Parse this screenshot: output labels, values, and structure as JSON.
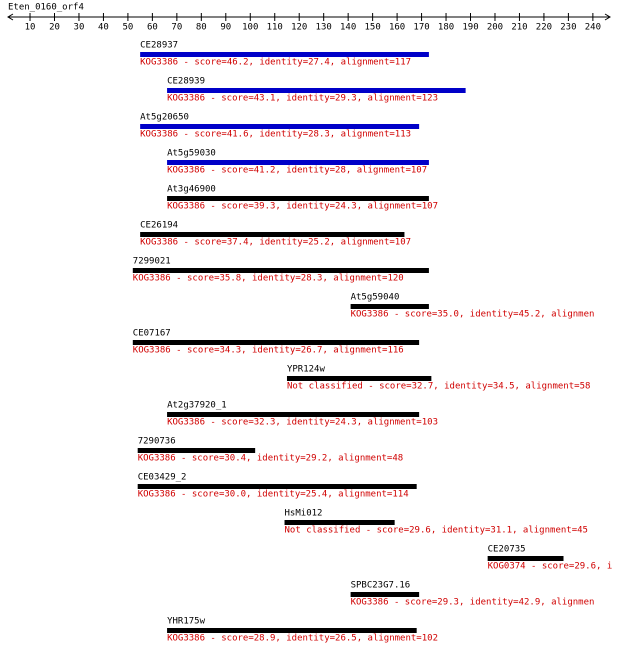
{
  "ruler": {
    "title": "Eten_0160_orf4",
    "xlim": [
      1,
      247
    ],
    "ticks": [
      10,
      20,
      30,
      40,
      50,
      60,
      70,
      80,
      90,
      100,
      110,
      120,
      130,
      140,
      150,
      160,
      170,
      180,
      190,
      200,
      210,
      220,
      230,
      240
    ]
  },
  "hits": [
    {
      "name": "CE28937",
      "description": "KOG3386 - score=46.2, identity=27.4, alignment=117",
      "start": 55,
      "end": 173,
      "color": "#0000c8"
    },
    {
      "name": "CE28939",
      "description": "KOG3386 - score=43.1, identity=29.3, alignment=123",
      "start": 66,
      "end": 188,
      "color": "#0000c8"
    },
    {
      "name": "At5g20650",
      "description": "KOG3386 - score=41.6, identity=28.3, alignment=113",
      "start": 55,
      "end": 169,
      "color": "#0000c8"
    },
    {
      "name": "At5g59030",
      "description": "KOG3386 - score=41.2, identity=28, alignment=107",
      "start": 66,
      "end": 173,
      "color": "#0000c8"
    },
    {
      "name": "At3g46900",
      "description": "KOG3386 - score=39.3, identity=24.3, alignment=107",
      "start": 66,
      "end": 173,
      "color": "#000000"
    },
    {
      "name": "CE26194",
      "description": "KOG3386 - score=37.4, identity=25.2, alignment=107",
      "start": 55,
      "end": 163,
      "color": "#000000"
    },
    {
      "name": "7299021",
      "description": "KOG3386 - score=35.8, identity=28.3, alignment=120",
      "start": 52,
      "end": 173,
      "color": "#000000"
    },
    {
      "name": "At5g59040",
      "description": "KOG3386 - score=35.0, identity=45.2, alignmen",
      "start": 141,
      "end": 173,
      "color": "#000000"
    },
    {
      "name": "CE07167",
      "description": "KOG3386 - score=34.3, identity=26.7, alignment=116",
      "start": 52,
      "end": 169,
      "color": "#000000"
    },
    {
      "name": "YPR124w",
      "description": "Not classified - score=32.7, identity=34.5, alignment=58",
      "start": 115,
      "end": 174,
      "color": "#000000"
    },
    {
      "name": "At2g37920_1",
      "description": "KOG3386 - score=32.3, identity=24.3, alignment=103",
      "start": 66,
      "end": 169,
      "color": "#000000"
    },
    {
      "name": "7290736",
      "description": "KOG3386 - score=30.4, identity=29.2, alignment=48",
      "start": 54,
      "end": 102,
      "color": "#000000"
    },
    {
      "name": "CE03429_2",
      "description": "KOG3386 - score=30.0, identity=25.4, alignment=114",
      "start": 54,
      "end": 168,
      "color": "#000000"
    },
    {
      "name": "HsMi012",
      "description": "Not classified - score=29.6, identity=31.1, alignment=45",
      "start": 114,
      "end": 159,
      "color": "#000000"
    },
    {
      "name": "CE20735",
      "description": "KOG0374 - score=29.6, i",
      "start": 197,
      "end": 228,
      "color": "#000000"
    },
    {
      "name": "SPBC23G7.16",
      "description": "KOG3386 - score=29.3, identity=42.9, alignmen",
      "start": 141,
      "end": 169,
      "color": "#000000"
    },
    {
      "name": "YHR175w",
      "description": "KOG3386 - score=28.9, identity=26.5, alignment=102",
      "start": 66,
      "end": 168,
      "color": "#000000"
    }
  ]
}
